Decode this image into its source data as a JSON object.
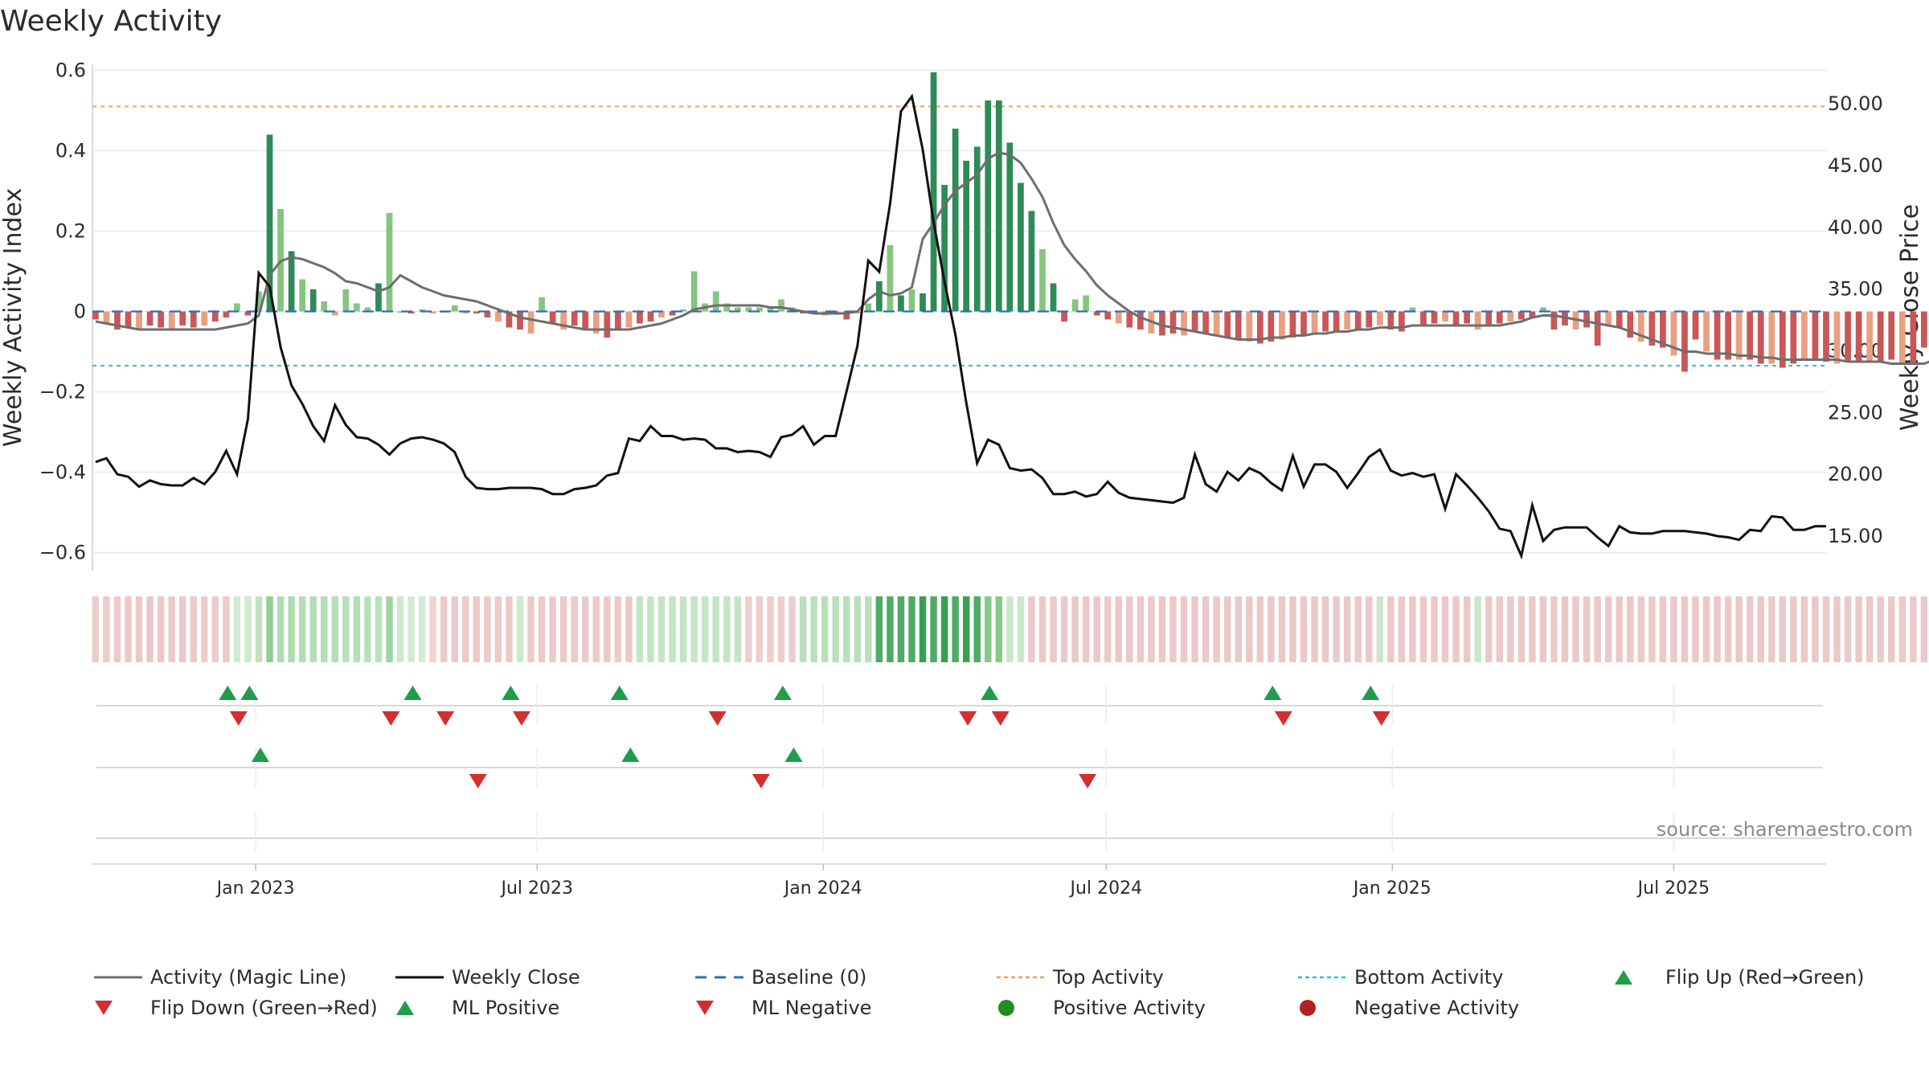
{
  "chart_data": {
    "type": "bar",
    "title": "Weekly Activity",
    "ylabel": "Weekly Activity Index",
    "y2label": "Weekly Close Price",
    "source": "source: sharemaestro.com",
    "ylim": [
      -0.645,
      0.615
    ],
    "y2lim": [
      12.2,
      53.2
    ],
    "yticks": [
      0.6,
      0.4,
      0.2,
      0,
      -0.2,
      -0.4,
      -0.6
    ],
    "yticklabels": [
      "0.6",
      "0.4",
      "0.2",
      "0",
      "−0.2",
      "−0.4",
      "−0.6"
    ],
    "y2ticks": [
      50,
      45,
      40,
      35,
      30,
      25,
      20,
      15
    ],
    "y2ticklabels": [
      "50.00",
      "45.00",
      "40.00",
      "35.00",
      "30.00",
      "25.00",
      "20.00",
      "15.00"
    ],
    "xdomain": [
      "2022-09-18",
      "2025-10-07"
    ],
    "xticks": [
      {
        "date": "2023-01-01",
        "label": "Jan 2023"
      },
      {
        "date": "2023-07-01",
        "label": "Jul 2023"
      },
      {
        "date": "2024-01-01",
        "label": "Jan 2024"
      },
      {
        "date": "2024-07-01",
        "label": "Jul 2024"
      },
      {
        "date": "2025-01-01",
        "label": "Jan 2025"
      },
      {
        "date": "2025-07-01",
        "label": "Jul 2025"
      }
    ],
    "x_start": "2022-09-20",
    "week_step_days": 7,
    "top_activity": 0.51,
    "bottom_activity": -0.135,
    "baseline": 0,
    "activity": [
      -0.02,
      -0.03,
      -0.045,
      -0.04,
      -0.045,
      -0.035,
      -0.04,
      -0.045,
      -0.035,
      -0.04,
      -0.035,
      -0.025,
      -0.015,
      0.02,
      -0.01,
      0.05,
      0.44,
      0.255,
      0.15,
      0.08,
      0.055,
      0.025,
      -0.01,
      0.055,
      0.02,
      0.01,
      0.07,
      0.245,
      0.0,
      -0.005,
      0.005,
      -0.005,
      0.0,
      0.015,
      -0.005,
      -0.005,
      -0.015,
      -0.025,
      -0.04,
      -0.045,
      -0.055,
      0.035,
      -0.03,
      -0.045,
      -0.035,
      -0.045,
      -0.055,
      -0.065,
      -0.045,
      -0.04,
      -0.03,
      -0.025,
      -0.015,
      -0.01,
      0.005,
      0.1,
      0.02,
      0.05,
      0.02,
      0.01,
      0.01,
      0.01,
      0.01,
      0.03,
      0.01,
      -0.005,
      -0.005,
      -0.01,
      -0.005,
      -0.02,
      -0.005,
      0.02,
      0.075,
      0.165,
      0.04,
      0.055,
      0.045,
      0.595,
      0.315,
      0.455,
      0.375,
      0.41,
      0.525,
      0.525,
      0.42,
      0.32,
      0.25,
      0.155,
      0.07,
      -0.025,
      0.03,
      0.04,
      -0.01,
      -0.02,
      -0.03,
      -0.04,
      -0.045,
      -0.055,
      -0.06,
      -0.055,
      -0.06,
      -0.05,
      -0.055,
      -0.06,
      -0.065,
      -0.07,
      -0.075,
      -0.08,
      -0.075,
      -0.07,
      -0.065,
      -0.06,
      -0.055,
      -0.05,
      -0.05,
      -0.045,
      -0.045,
      -0.04,
      -0.035,
      -0.045,
      -0.05,
      0.01,
      -0.035,
      -0.03,
      -0.025,
      -0.035,
      -0.03,
      -0.045,
      -0.035,
      -0.03,
      -0.025,
      -0.02,
      -0.015,
      0.01,
      -0.045,
      -0.035,
      -0.045,
      -0.04,
      -0.085,
      -0.035,
      -0.04,
      -0.065,
      -0.075,
      -0.085,
      -0.09,
      -0.11,
      -0.15,
      -0.07,
      -0.1,
      -0.12,
      -0.12,
      -0.12,
      -0.12,
      -0.13,
      -0.13,
      -0.14,
      -0.13,
      -0.12,
      -0.12,
      -0.125,
      -0.13,
      -0.125,
      -0.125,
      -0.125,
      -0.125,
      -0.12,
      -0.13,
      -0.13,
      -0.09,
      -0.095,
      -0.1,
      -0.09,
      -0.12
    ],
    "magic_line": [
      -0.025,
      -0.03,
      -0.035,
      -0.04,
      -0.045,
      -0.045,
      -0.045,
      -0.045,
      -0.045,
      -0.045,
      -0.045,
      -0.045,
      -0.04,
      -0.035,
      -0.03,
      -0.01,
      0.09,
      0.125,
      0.135,
      0.13,
      0.12,
      0.11,
      0.095,
      0.075,
      0.07,
      0.06,
      0.05,
      0.06,
      0.09,
      0.075,
      0.06,
      0.05,
      0.04,
      0.035,
      0.03,
      0.025,
      0.015,
      0.005,
      -0.005,
      -0.015,
      -0.02,
      -0.025,
      -0.03,
      -0.035,
      -0.04,
      -0.045,
      -0.045,
      -0.045,
      -0.045,
      -0.045,
      -0.04,
      -0.035,
      -0.03,
      -0.02,
      -0.01,
      0.005,
      0.01,
      0.015,
      0.015,
      0.015,
      0.015,
      0.015,
      0.01,
      0.01,
      0.005,
      0.0,
      -0.005,
      -0.005,
      -0.005,
      -0.005,
      0.0,
      0.03,
      0.05,
      0.04,
      0.045,
      0.06,
      0.18,
      0.22,
      0.265,
      0.3,
      0.32,
      0.34,
      0.38,
      0.395,
      0.39,
      0.37,
      0.33,
      0.285,
      0.22,
      0.165,
      0.13,
      0.1,
      0.065,
      0.04,
      0.02,
      0.0,
      -0.015,
      -0.025,
      -0.035,
      -0.04,
      -0.045,
      -0.05,
      -0.055,
      -0.06,
      -0.065,
      -0.07,
      -0.07,
      -0.07,
      -0.065,
      -0.065,
      -0.06,
      -0.06,
      -0.055,
      -0.055,
      -0.05,
      -0.05,
      -0.045,
      -0.045,
      -0.04,
      -0.04,
      -0.04,
      -0.035,
      -0.035,
      -0.035,
      -0.035,
      -0.035,
      -0.035,
      -0.035,
      -0.035,
      -0.035,
      -0.03,
      -0.025,
      -0.015,
      -0.01,
      -0.01,
      -0.015,
      -0.02,
      -0.025,
      -0.03,
      -0.035,
      -0.04,
      -0.05,
      -0.06,
      -0.07,
      -0.08,
      -0.09,
      -0.1,
      -0.1,
      -0.105,
      -0.105,
      -0.105,
      -0.11,
      -0.11,
      -0.115,
      -0.115,
      -0.12,
      -0.12,
      -0.12,
      -0.12,
      -0.12,
      -0.12,
      -0.125,
      -0.125,
      -0.125,
      -0.125,
      -0.13,
      -0.13,
      -0.13,
      -0.13,
      -0.12,
      -0.115,
      -0.115,
      -0.11,
      -0.105,
      -0.11,
      -0.11,
      -0.11
    ],
    "weekly_close": [
      21.0,
      21.3,
      20.0,
      19.8,
      19.0,
      19.5,
      19.2,
      19.1,
      19.1,
      19.7,
      19.2,
      20.2,
      21.9,
      20.0,
      24.5,
      36.3,
      35.2,
      30.3,
      27.2,
      25.7,
      23.9,
      22.7,
      25.6,
      24.0,
      23.0,
      22.9,
      22.4,
      21.6,
      22.5,
      22.9,
      23.0,
      22.8,
      22.5,
      21.8,
      19.8,
      18.9,
      18.8,
      18.8,
      18.9,
      18.9,
      18.9,
      18.8,
      18.4,
      18.4,
      18.8,
      18.9,
      19.1,
      19.9,
      20.1,
      22.9,
      22.7,
      23.9,
      23.1,
      23.1,
      22.8,
      22.9,
      22.8,
      22.1,
      22.1,
      21.8,
      21.9,
      21.8,
      21.4,
      23.0,
      23.2,
      23.9,
      22.4,
      23.1,
      23.1,
      26.7,
      30.4,
      37.3,
      36.4,
      41.9,
      49.4,
      50.6,
      46.3,
      40.4,
      35.6,
      31.3,
      25.8,
      20.9,
      22.8,
      22.4,
      20.5,
      20.3,
      20.4,
      19.7,
      18.4,
      18.4,
      18.6,
      18.2,
      18.4,
      19.4,
      18.5,
      18.1,
      18.0,
      17.9,
      17.8,
      17.7,
      18.1,
      21.6,
      19.2,
      18.6,
      20.2,
      19.5,
      20.5,
      20.1,
      19.3,
      18.7,
      21.5,
      19.0,
      20.8,
      20.8,
      20.2,
      18.9,
      20.1,
      21.4,
      22.0,
      20.3,
      19.9,
      20.1,
      19.8,
      20.0,
      17.2,
      20.0,
      19.1,
      18.1,
      17.0,
      15.6,
      15.4,
      13.4,
      17.5,
      14.6,
      15.5,
      15.7,
      15.7,
      15.7,
      14.9,
      14.2,
      15.8,
      15.3,
      15.2,
      15.2,
      15.4,
      15.4,
      15.4,
      15.3,
      15.2,
      15.0,
      14.9,
      14.7,
      15.5,
      15.4,
      16.6,
      16.5,
      15.5,
      15.5,
      15.8,
      15.8
    ],
    "strip_activity": [
      -0.09,
      -0.095,
      -0.1,
      -0.105,
      -0.11,
      -0.115,
      -0.1,
      -0.105,
      -0.11,
      -0.1,
      -0.095,
      -0.09,
      -0.1,
      0.04,
      0.05,
      0.09,
      0.26,
      0.15,
      0.15,
      0.14,
      0.14,
      0.14,
      0.13,
      0.12,
      0.13,
      0.12,
      0.12,
      0.21,
      0.05,
      0.04,
      0.03,
      -0.06,
      -0.1,
      -0.1,
      -0.1,
      -0.1,
      -0.1,
      -0.1,
      -0.1,
      0.05,
      -0.1,
      -0.1,
      -0.1,
      -0.1,
      -0.1,
      -0.1,
      -0.1,
      -0.1,
      -0.1,
      -0.1,
      0.08,
      0.08,
      0.08,
      0.08,
      0.08,
      0.08,
      0.08,
      0.08,
      0.08,
      0.08,
      -0.08,
      -0.08,
      -0.08,
      -0.08,
      -0.08,
      0.12,
      0.12,
      0.12,
      0.12,
      0.12,
      0.12,
      0.12,
      0.4,
      0.4,
      0.4,
      0.4,
      0.5,
      0.4,
      0.5,
      0.4,
      0.5,
      0.4,
      0.3,
      0.3,
      0.06,
      0.06,
      -0.11,
      -0.11,
      -0.11,
      -0.11,
      -0.11,
      -0.11,
      -0.11,
      -0.11,
      -0.11,
      -0.11,
      -0.11,
      -0.11,
      -0.11,
      -0.11,
      -0.11,
      -0.11,
      -0.11,
      -0.11,
      -0.11,
      -0.11,
      -0.11,
      -0.11,
      -0.11,
      -0.11,
      -0.11,
      -0.11,
      -0.11,
      -0.11,
      -0.11,
      -0.11,
      -0.11,
      -0.11,
      0.06,
      -0.11,
      -0.11,
      -0.11,
      -0.11,
      -0.11,
      -0.11,
      -0.11,
      -0.11,
      0.06,
      -0.11,
      -0.11,
      -0.11,
      -0.11,
      -0.11,
      -0.11,
      -0.11,
      -0.11,
      -0.11,
      -0.11,
      -0.11,
      -0.11,
      -0.11,
      -0.11,
      -0.11,
      -0.11,
      -0.11,
      -0.11,
      -0.11,
      -0.11,
      -0.11,
      -0.11,
      -0.11,
      -0.11,
      -0.11,
      -0.11,
      -0.11,
      -0.11,
      -0.11,
      -0.11,
      -0.11,
      -0.11,
      -0.11,
      -0.11,
      -0.11,
      -0.11,
      -0.11,
      -0.11,
      -0.11,
      -0.11,
      -0.11,
      -0.11,
      -0.11,
      -0.11,
      -0.11,
      -0.11,
      -0.11,
      -0.11,
      -0.11,
      -0.11,
      -0.11
    ],
    "flip_up": [
      "2022-12-14",
      "2022-12-28",
      "2023-04-12",
      "2023-06-14",
      "2023-08-23",
      "2023-12-06",
      "2024-04-17",
      "2024-10-16",
      "2024-12-18"
    ],
    "flip_down": [
      "2022-12-21",
      "2023-03-29",
      "2023-05-03",
      "2023-06-21",
      "2023-10-25",
      "2024-04-03",
      "2024-04-24",
      "2024-10-23",
      "2024-12-25"
    ],
    "ml_positive": [
      "2023-01-04",
      "2023-08-30",
      "2023-12-13"
    ],
    "ml_negative": [
      "2023-05-24",
      "2023-11-22",
      "2024-06-19"
    ],
    "legend": [
      {
        "key": "activity_line",
        "label": "Activity (Magic Line)"
      },
      {
        "key": "close",
        "label": "Weekly Close"
      },
      {
        "key": "baseline",
        "label": "Baseline (0)"
      },
      {
        "key": "top",
        "label": "Top Activity"
      },
      {
        "key": "bottom",
        "label": "Bottom Activity"
      },
      {
        "key": "flip_up",
        "label": "Flip Up (Red→Green)"
      },
      {
        "key": "flip_down",
        "label": "Flip Down (Green→Red)"
      },
      {
        "key": "ml_pos",
        "label": "ML Positive"
      },
      {
        "key": "ml_neg",
        "label": "ML Negative"
      },
      {
        "key": "pos_act",
        "label": "Positive Activity"
      },
      {
        "key": "neg_act",
        "label": "Negative Activity"
      }
    ],
    "colors": {
      "pos_strong": "#2e8b57",
      "pos_light": "#86c57f",
      "neg_strong": "#c95757",
      "neg_light": "#e8a080",
      "magic_line": "#6e6e6e",
      "close": "#111111",
      "baseline": "#2f6fb3",
      "top": "#f0a060",
      "bottom": "#20c8c8",
      "up": "#1f9d4a",
      "down": "#d32f2f",
      "pos_dot": "#228b22",
      "neg_dot": "#b22222",
      "grid": "#e6e6e6"
    }
  }
}
